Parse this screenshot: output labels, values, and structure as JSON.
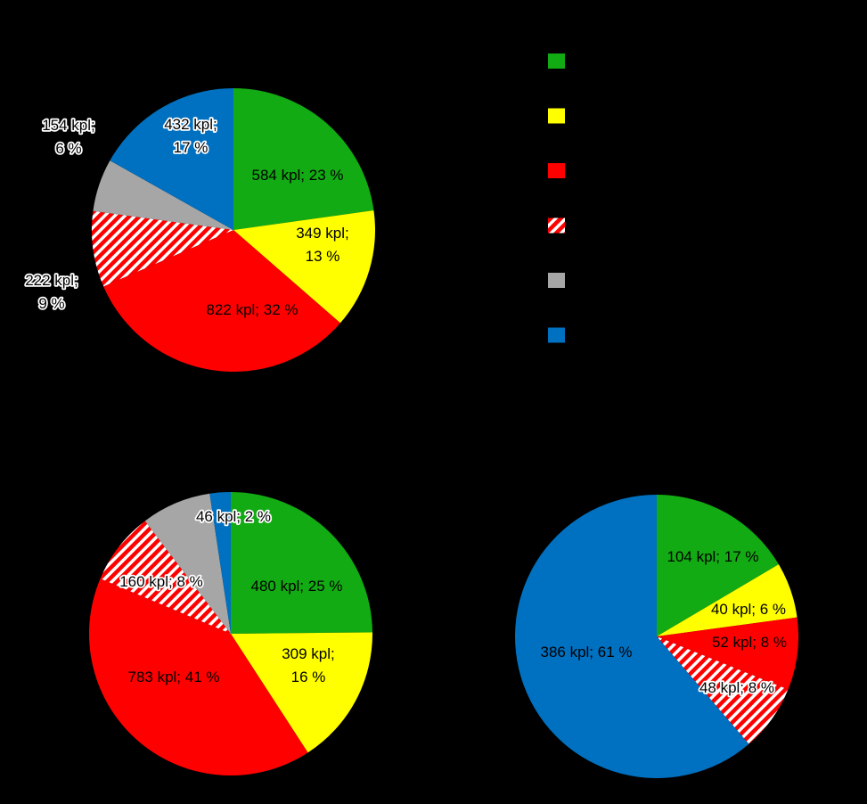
{
  "colors": {
    "green": "#13ab13",
    "yellow": "#ffff00",
    "red": "#ff0000",
    "red_hatched": "#ff0000",
    "gray": "#a6a6a6",
    "blue": "#0070c0",
    "background": "#000000"
  },
  "legend": {
    "placement": "top-right",
    "items": [
      {
        "color_key": "green",
        "label": ""
      },
      {
        "color_key": "yellow",
        "label": ""
      },
      {
        "color_key": "red",
        "label": ""
      },
      {
        "color_key": "red_hatched",
        "label": ""
      },
      {
        "color_key": "gray",
        "label": ""
      },
      {
        "color_key": "blue",
        "label": ""
      }
    ]
  },
  "chart_data": [
    {
      "type": "pie",
      "title": "",
      "slices": [
        {
          "color_key": "green",
          "value": 584,
          "label": [
            "584 kpl; 23 %"
          ]
        },
        {
          "color_key": "yellow",
          "value": 349,
          "label": [
            "349 kpl;",
            "13 %"
          ]
        },
        {
          "color_key": "red",
          "value": 822,
          "label": [
            "822 kpl; 32 %"
          ]
        },
        {
          "color_key": "red_hatched",
          "value": 222,
          "label": [
            "222 kpl;",
            "9 %"
          ]
        },
        {
          "color_key": "gray",
          "value": 154,
          "label": [
            "154 kpl;",
            "6 %"
          ]
        },
        {
          "color_key": "blue",
          "value": 432,
          "label": [
            "432 kpl;",
            "17 %"
          ]
        }
      ]
    },
    {
      "type": "pie",
      "title": "",
      "slices": [
        {
          "color_key": "green",
          "value": 480,
          "label": [
            "480 kpl; 25 %"
          ]
        },
        {
          "color_key": "yellow",
          "value": 309,
          "label": [
            "309 kpl;",
            "16 %"
          ]
        },
        {
          "color_key": "red",
          "value": 783,
          "label": [
            "783 kpl; 41 %"
          ]
        },
        {
          "color_key": "red_hatched",
          "value": 160,
          "label": [
            "160 kpl; 8 %"
          ]
        },
        {
          "color_key": "gray",
          "value": 154,
          "label": [
            ""
          ]
        },
        {
          "color_key": "blue",
          "value": 46,
          "label": [
            "46 kpl; 2 %"
          ]
        }
      ]
    },
    {
      "type": "pie",
      "title": "",
      "slices": [
        {
          "color_key": "green",
          "value": 104,
          "label": [
            "104 kpl; 17 %"
          ]
        },
        {
          "color_key": "yellow",
          "value": 40,
          "label": [
            "40 kpl; 6 %"
          ]
        },
        {
          "color_key": "red",
          "value": 52,
          "label": [
            "52 kpl; 8 %"
          ]
        },
        {
          "color_key": "red_hatched",
          "value": 48,
          "label": [
            "48 kpl; 8 %"
          ]
        },
        {
          "color_key": "blue",
          "value": 386,
          "label": [
            "386 kpl; 61 %"
          ]
        }
      ]
    }
  ]
}
